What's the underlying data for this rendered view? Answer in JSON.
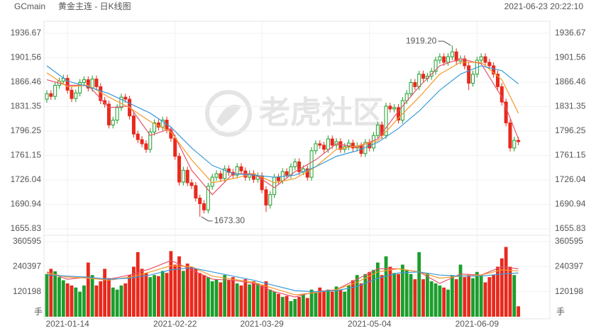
{
  "header": {
    "symbol": "GCmain",
    "title": "黄金主连 - 日K线图",
    "timestamp": "2021-06-23 20:22:10",
    "watermark": "老虎社区"
  },
  "chart_data": [
    {
      "type": "candlestick",
      "categories": [
        null,
        null,
        null,
        null,
        null,
        "2021-01-14",
        null,
        null,
        null,
        null,
        null,
        null,
        null,
        null,
        null,
        null,
        null,
        null,
        null,
        null,
        null,
        null,
        null,
        null,
        null,
        null,
        null,
        null,
        null,
        null,
        null,
        "2021-02-22",
        null,
        null,
        null,
        null,
        null,
        null,
        null,
        null,
        null,
        null,
        null,
        null,
        null,
        null,
        null,
        null,
        null,
        null,
        null,
        null,
        "2021-03-29",
        null,
        null,
        null,
        null,
        null,
        null,
        null,
        null,
        null,
        null,
        null,
        null,
        null,
        null,
        null,
        null,
        null,
        null,
        null,
        null,
        null,
        null,
        null,
        null,
        null,
        "2021-05-04",
        null,
        null,
        null,
        null,
        null,
        null,
        null,
        null,
        null,
        null,
        null,
        null,
        null,
        null,
        null,
        null,
        null,
        null,
        null,
        null,
        null,
        null,
        null,
        null,
        null,
        "2021-06-09",
        null,
        null,
        null,
        null,
        null,
        null,
        null,
        null,
        null,
        null
      ],
      "open": [
        1842,
        1850,
        1846,
        1862,
        1868,
        1872,
        1855,
        1843,
        1851,
        1866,
        1870,
        1858,
        1871,
        1860,
        1840,
        1835,
        1805,
        1812,
        1830,
        1845,
        1842,
        1818,
        1792,
        1784,
        1778,
        1770,
        1795,
        1808,
        1802,
        1812,
        1798,
        1786,
        1760,
        1723,
        1740,
        1722,
        1718,
        1700,
        1692,
        1683,
        1717,
        1730,
        1735,
        1728,
        1742,
        1737,
        1733,
        1745,
        1739,
        1730,
        1735,
        1727,
        1732,
        1712,
        1690,
        1705,
        1730,
        1725,
        1738,
        1733,
        1745,
        1752,
        1738,
        1742,
        1730,
        1768,
        1778,
        1776,
        1770,
        1785,
        1776,
        1781,
        1770,
        1774,
        1779,
        1772,
        1775,
        1764,
        1780,
        1772,
        1790,
        1805,
        1790,
        1832,
        1828,
        1830,
        1812,
        1840,
        1850,
        1866,
        1860,
        1878,
        1872,
        1875,
        1882,
        1898,
        1903,
        1895,
        1903,
        1910,
        1897,
        1900,
        1890,
        1865,
        1878,
        1898,
        1903,
        1895,
        1890,
        1878,
        1860,
        1838,
        1808,
        1772,
        1783
      ],
      "high": [
        1855,
        1855,
        1867,
        1873,
        1877,
        1877,
        1860,
        1856,
        1871,
        1875,
        1875,
        1876,
        1876,
        1865,
        1845,
        1840,
        1817,
        1835,
        1850,
        1850,
        1847,
        1823,
        1797,
        1789,
        1783,
        1800,
        1813,
        1813,
        1817,
        1817,
        1803,
        1791,
        1765,
        1745,
        1745,
        1727,
        1723,
        1705,
        1697,
        1722,
        1735,
        1740,
        1740,
        1747,
        1747,
        1742,
        1750,
        1750,
        1744,
        1740,
        1740,
        1737,
        1737,
        1717,
        1710,
        1735,
        1735,
        1743,
        1743,
        1750,
        1757,
        1757,
        1747,
        1747,
        1773,
        1783,
        1783,
        1781,
        1790,
        1790,
        1786,
        1786,
        1779,
        1784,
        1784,
        1780,
        1780,
        1785,
        1785,
        1795,
        1810,
        1810,
        1837,
        1837,
        1835,
        1835,
        1845,
        1855,
        1871,
        1871,
        1883,
        1883,
        1880,
        1887,
        1903,
        1908,
        1908,
        1908,
        1919.2,
        1915,
        1905,
        1905,
        1895,
        1883,
        1903,
        1908,
        1908,
        1900,
        1895,
        1883,
        1865,
        1843,
        1813,
        1788,
        1788
      ],
      "low": [
        1837,
        1841,
        1841,
        1857,
        1863,
        1850,
        1838,
        1838,
        1846,
        1861,
        1853,
        1853,
        1855,
        1835,
        1830,
        1800,
        1800,
        1807,
        1825,
        1837,
        1813,
        1787,
        1779,
        1773,
        1765,
        1765,
        1790,
        1797,
        1797,
        1793,
        1781,
        1755,
        1718,
        1718,
        1717,
        1713,
        1695,
        1673.3,
        1678,
        1678,
        1712,
        1725,
        1723,
        1723,
        1732,
        1728,
        1728,
        1734,
        1725,
        1725,
        1722,
        1722,
        1707,
        1680,
        1685,
        1700,
        1720,
        1720,
        1728,
        1728,
        1740,
        1733,
        1733,
        1725,
        1725,
        1763,
        1771,
        1765,
        1765,
        1771,
        1771,
        1765,
        1765,
        1769,
        1767,
        1767,
        1759,
        1759,
        1767,
        1767,
        1785,
        1785,
        1785,
        1823,
        1823,
        1807,
        1807,
        1835,
        1845,
        1855,
        1855,
        1867,
        1867,
        1870,
        1877,
        1893,
        1890,
        1890,
        1898,
        1892,
        1892,
        1885,
        1855,
        1860,
        1873,
        1893,
        1890,
        1885,
        1873,
        1855,
        1833,
        1803,
        1767,
        1767,
        1776
      ],
      "close": [
        1850,
        1846,
        1862,
        1868,
        1872,
        1855,
        1843,
        1851,
        1866,
        1870,
        1858,
        1871,
        1860,
        1840,
        1835,
        1805,
        1812,
        1830,
        1845,
        1842,
        1818,
        1792,
        1784,
        1778,
        1770,
        1795,
        1808,
        1802,
        1812,
        1798,
        1786,
        1760,
        1723,
        1740,
        1722,
        1718,
        1700,
        1692,
        1683,
        1717,
        1730,
        1735,
        1728,
        1742,
        1737,
        1733,
        1745,
        1739,
        1730,
        1735,
        1727,
        1732,
        1712,
        1690,
        1705,
        1730,
        1725,
        1738,
        1733,
        1745,
        1752,
        1738,
        1742,
        1730,
        1768,
        1778,
        1776,
        1770,
        1785,
        1776,
        1781,
        1770,
        1774,
        1779,
        1772,
        1775,
        1764,
        1780,
        1772,
        1790,
        1805,
        1790,
        1832,
        1828,
        1830,
        1812,
        1840,
        1850,
        1866,
        1860,
        1878,
        1872,
        1875,
        1882,
        1898,
        1903,
        1895,
        1903,
        1910,
        1897,
        1900,
        1890,
        1865,
        1878,
        1898,
        1903,
        1895,
        1890,
        1878,
        1860,
        1838,
        1808,
        1772,
        1783,
        1781
      ],
      "up_color": "#1c9e2c",
      "down_color": "#e8291c",
      "ylim": [
        1655.83,
        1936.67
      ],
      "yticks": [
        1655.83,
        1690.94,
        1726.04,
        1761.15,
        1796.25,
        1831.35,
        1866.46,
        1901.56,
        1936.67
      ],
      "annotations": [
        "1919.20",
        "1673.30"
      ],
      "lines_x": [
        0,
        5,
        10,
        15,
        20,
        25,
        30,
        35,
        40,
        45,
        50,
        55,
        60,
        65,
        70,
        75,
        80,
        85,
        90,
        95,
        100,
        105,
        110,
        114
      ],
      "lines": [
        {
          "color": "#e8536a",
          "values": [
            1870,
            1862,
            1862,
            1830,
            1832,
            1790,
            1800,
            1740,
            1705,
            1735,
            1735,
            1715,
            1738,
            1755,
            1778,
            1773,
            1785,
            1825,
            1860,
            1890,
            1900,
            1893,
            1845,
            1785
          ]
        },
        {
          "color": "#f39a2b",
          "values": [
            1880,
            1860,
            1862,
            1845,
            1830,
            1810,
            1795,
            1755,
            1722,
            1728,
            1735,
            1722,
            1728,
            1745,
            1770,
            1775,
            1782,
            1815,
            1845,
            1878,
            1895,
            1895,
            1870,
            1822
          ]
        },
        {
          "color": "#3a9ad9",
          "values": [
            1890,
            1868,
            1860,
            1850,
            1836,
            1822,
            1802,
            1772,
            1747,
            1735,
            1733,
            1730,
            1733,
            1745,
            1760,
            1768,
            1780,
            1800,
            1825,
            1855,
            1878,
            1890,
            1883,
            1864
          ]
        }
      ]
    },
    {
      "type": "bar",
      "unit": "手",
      "values": [
        205000,
        230000,
        218000,
        190000,
        175000,
        160000,
        150000,
        140000,
        120000,
        150000,
        260000,
        200000,
        150000,
        170000,
        230000,
        185000,
        140000,
        130000,
        150000,
        160000,
        200000,
        240000,
        310000,
        230000,
        210000,
        190000,
        200000,
        195000,
        220000,
        210000,
        315000,
        250000,
        290000,
        220000,
        255000,
        240000,
        230000,
        210000,
        200000,
        190000,
        170000,
        180000,
        165000,
        200000,
        175000,
        190000,
        160000,
        150000,
        180000,
        155000,
        170000,
        160000,
        150000,
        170000,
        130000,
        120000,
        110000,
        95000,
        100000,
        75000,
        85000,
        95000,
        110000,
        90000,
        130000,
        115000,
        140000,
        125000,
        130000,
        120000,
        145000,
        130000,
        120000,
        150000,
        175000,
        200000,
        160000,
        205000,
        215000,
        225000,
        260000,
        200000,
        290000,
        240000,
        210000,
        205000,
        250000,
        225000,
        205000,
        180000,
        310000,
        180000,
        210000,
        170000,
        160000,
        150000,
        140000,
        130000,
        200000,
        180000,
        250000,
        190000,
        200000,
        185000,
        215000,
        200000,
        165000,
        190000,
        200000,
        240000,
        280000,
        335000,
        240000,
        200000,
        50000
      ],
      "ylim": [
        0,
        360595
      ],
      "yticks": [
        120198,
        240397,
        360595
      ],
      "lines": [
        {
          "color": "#e8536a",
          "values": [
            215000,
            180000,
            190000,
            180000,
            200000,
            230000,
            270000,
            225000,
            180000,
            175000,
            160000,
            120000,
            95000,
            120000,
            130000,
            180000,
            230000,
            230000,
            215000,
            160000,
            205000,
            200000,
            240000,
            230000
          ]
        },
        {
          "color": "#f39a2b",
          "values": [
            210000,
            190000,
            185000,
            175000,
            190000,
            215000,
            245000,
            240000,
            195000,
            180000,
            165000,
            135000,
            105000,
            115000,
            130000,
            165000,
            215000,
            230000,
            215000,
            185000,
            195000,
            200000,
            225000,
            220000
          ]
        },
        {
          "color": "#3a9ad9",
          "values": [
            200000,
            195000,
            190000,
            180000,
            185000,
            200000,
            225000,
            235000,
            215000,
            195000,
            175000,
            150000,
            125000,
            120000,
            125000,
            145000,
            185000,
            210000,
            215000,
            200000,
            195000,
            195000,
            205000,
            210000
          ]
        }
      ]
    }
  ]
}
